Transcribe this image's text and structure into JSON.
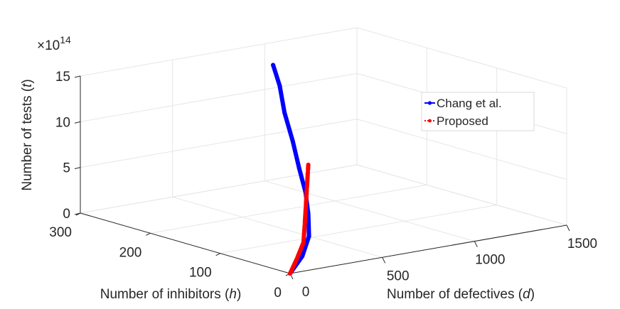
{
  "chart_data": {
    "type": "line",
    "projection": "3d",
    "grid": true,
    "legend_position": "top-right",
    "x_axis": {
      "label": "Number of defectives",
      "symbol": "d",
      "ticks": [
        "0",
        "500",
        "1000",
        "1500"
      ],
      "range": [
        0,
        1500
      ]
    },
    "y_axis": {
      "label": "Number of inhibitors",
      "symbol": "h",
      "ticks": [
        "0",
        "100",
        "200",
        "300"
      ],
      "range": [
        0,
        300
      ]
    },
    "z_axis": {
      "label": "Number of tests",
      "symbol": "t",
      "ticks": [
        "0",
        "5",
        "10",
        "15"
      ],
      "range": [
        0,
        15
      ],
      "multiplier_base": "×10",
      "multiplier_exponent": "14"
    },
    "series": [
      {
        "name": "Chang et al.",
        "color": "#0000ff",
        "points": [
          {
            "d": 0,
            "h": 0,
            "z": 0
          },
          {
            "d": 180,
            "h": 30,
            "z": 0.6
          },
          {
            "d": 330,
            "h": 60,
            "z": 1.6
          },
          {
            "d": 440,
            "h": 90,
            "z": 3.0
          },
          {
            "d": 520,
            "h": 115,
            "z": 4.5
          },
          {
            "d": 580,
            "h": 140,
            "z": 6.4
          },
          {
            "d": 640,
            "h": 165,
            "z": 8.6
          },
          {
            "d": 690,
            "h": 190,
            "z": 11.0
          },
          {
            "d": 740,
            "h": 210,
            "z": 13.3
          },
          {
            "d": 780,
            "h": 230,
            "z": 15.0
          }
        ]
      },
      {
        "name": "Proposed",
        "color": "#ff0000",
        "points": [
          {
            "d": 0,
            "h": 0,
            "z": 0
          },
          {
            "d": 150,
            "h": 30,
            "z": 0.4
          },
          {
            "d": 300,
            "h": 60,
            "z": 1.0
          },
          {
            "d": 420,
            "h": 90,
            "z": 1.7
          },
          {
            "d": 520,
            "h": 115,
            "z": 2.5
          },
          {
            "d": 620,
            "h": 140,
            "z": 3.4
          },
          {
            "d": 720,
            "h": 165,
            "z": 4.3
          },
          {
            "d": 800,
            "h": 185,
            "z": 5.0
          }
        ]
      }
    ]
  }
}
